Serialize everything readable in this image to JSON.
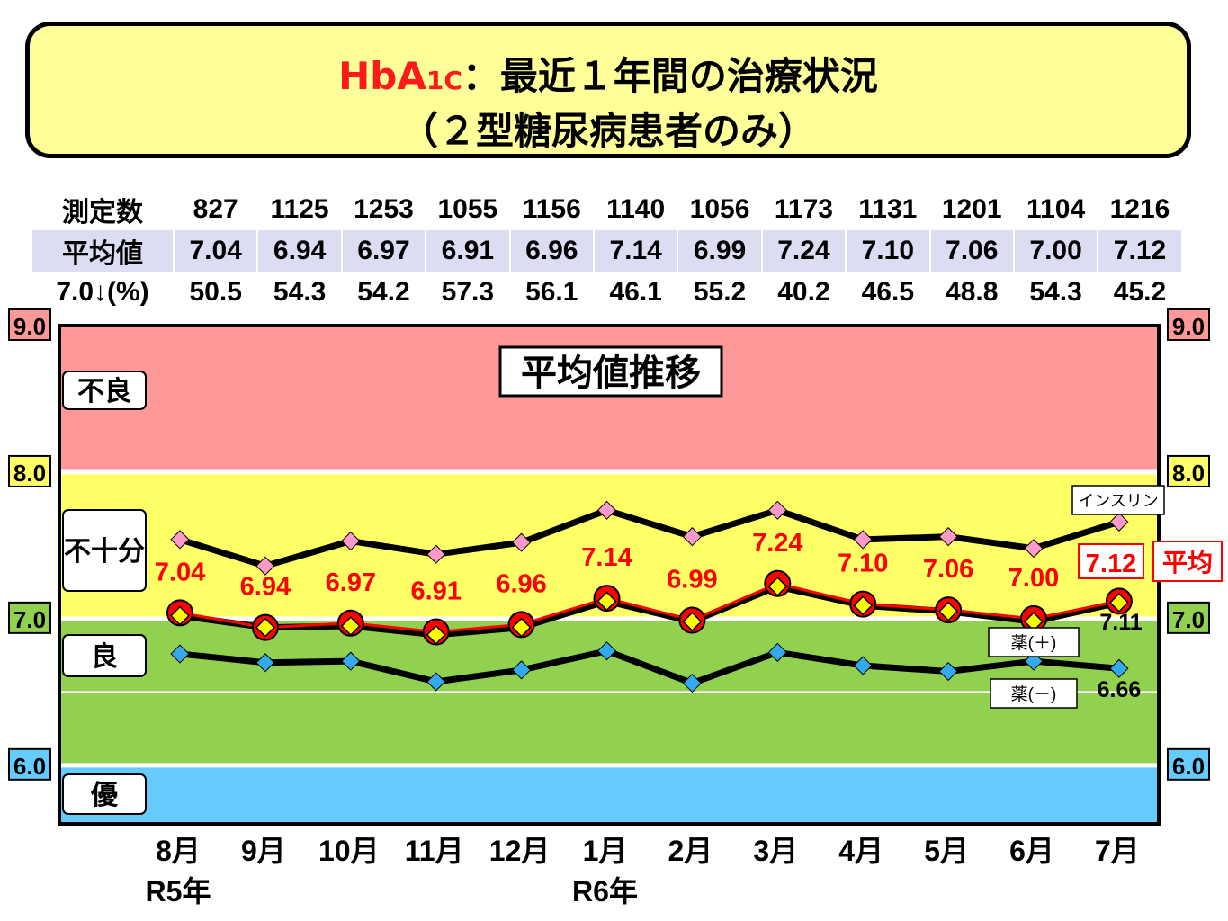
{
  "title": {
    "prefix": "HbA",
    "prefix_sub": "1C",
    "line1": "：最近１年間の治療状況",
    "line2": "（２型糖尿病患者のみ）"
  },
  "stats": {
    "rows": [
      {
        "label": "測定数",
        "values": [
          "827",
          "1125",
          "1253",
          "1055",
          "1156",
          "1140",
          "1056",
          "1173",
          "1131",
          "1201",
          "1104",
          "1216"
        ]
      },
      {
        "label": "平均値",
        "values": [
          "7.04",
          "6.94",
          "6.97",
          "6.91",
          "6.96",
          "7.14",
          "6.99",
          "7.24",
          "7.10",
          "7.06",
          "7.00",
          "7.12"
        ]
      },
      {
        "label": "7.0↓(%)",
        "values": [
          "50.5",
          "54.3",
          "54.2",
          "57.3",
          "56.1",
          "46.1",
          "55.2",
          "40.2",
          "46.5",
          "48.8",
          "54.3",
          "45.2"
        ]
      }
    ]
  },
  "chart_data": {
    "type": "line",
    "title": "平均値推移",
    "categories": [
      "8月",
      "9月",
      "10月",
      "11月",
      "12月",
      "1月",
      "2月",
      "3月",
      "4月",
      "5月",
      "6月",
      "7月"
    ],
    "year_labels": [
      {
        "index": 0,
        "label": "R5年"
      },
      {
        "index": 5,
        "label": "R6年"
      }
    ],
    "ylim": [
      5.6,
      9.0
    ],
    "y_ticks": [
      "9.0",
      "8.0",
      "7.0",
      "6.0"
    ],
    "zones": [
      {
        "label": "不良",
        "from": 8.0,
        "to": 9.0,
        "color": "#ff9999"
      },
      {
        "label": "不十分",
        "from": 7.0,
        "to": 8.0,
        "color": "#ffff66"
      },
      {
        "label": "良",
        "from": 6.0,
        "to": 7.0,
        "color": "#92d050"
      },
      {
        "label": "優",
        "from": 5.6,
        "to": 6.0,
        "color": "#66ccff"
      }
    ],
    "series": [
      {
        "name": "インスリン",
        "values": [
          7.54,
          7.36,
          7.53,
          7.44,
          7.52,
          7.74,
          7.56,
          7.74,
          7.54,
          7.56,
          7.48,
          7.66
        ],
        "color": "#ff99cc",
        "line": "#000000"
      },
      {
        "name": "平均",
        "values": [
          7.04,
          6.94,
          6.97,
          6.91,
          6.96,
          7.14,
          6.99,
          7.24,
          7.1,
          7.06,
          7.0,
          7.12
        ],
        "labels": [
          "7.04",
          "6.94",
          "6.97",
          "6.91",
          "6.96",
          "7.14",
          "6.99",
          "7.24",
          "7.10",
          "7.06",
          "7.00",
          "7.12"
        ],
        "color": "#ff0000"
      },
      {
        "name": "薬(＋)",
        "values": [
          7.02,
          6.94,
          6.95,
          6.89,
          6.94,
          7.12,
          6.98,
          7.22,
          7.09,
          7.05,
          6.98,
          7.11
        ],
        "end_label": "7.11",
        "color": "#ffff00",
        "line": "#000000"
      },
      {
        "name": "薬(－)",
        "values": [
          6.76,
          6.7,
          6.71,
          6.57,
          6.65,
          6.78,
          6.56,
          6.77,
          6.68,
          6.64,
          6.71,
          6.66
        ],
        "end_label": "6.66",
        "color": "#33aaee",
        "line": "#000000"
      }
    ]
  }
}
